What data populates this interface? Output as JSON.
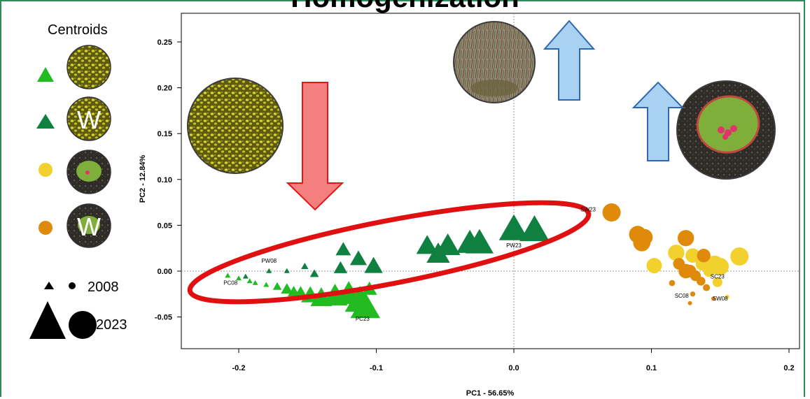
{
  "title": "Homogenization",
  "legend": {
    "title": "Centroids",
    "entries": [
      {
        "shape": "triangle",
        "color": "#22bb22",
        "badge": ""
      },
      {
        "shape": "triangle",
        "color": "#0f8040",
        "badge": "W"
      },
      {
        "shape": "circle",
        "color": "#f2d12e",
        "badge": ""
      },
      {
        "shape": "circle",
        "color": "#e08a0c",
        "badge": "W"
      }
    ],
    "size_small": "2008",
    "size_large": "2023"
  },
  "colors": {
    "pc": "#22bb22",
    "pw": "#0f8040",
    "sc": "#f2d12e",
    "sw": "#e08a0c",
    "ellipse": "#e01010",
    "down_arrow_fill": "#f47f7f",
    "down_arrow_stroke": "#e01818",
    "up_arrow_fill": "#a9d2f2",
    "up_arrow_stroke": "#2e68b0",
    "frame": "#2e8b57"
  },
  "chart_data": {
    "type": "scatter",
    "xlabel": "PC1 - 56.65%",
    "ylabel": "PC2 - 12.84%",
    "xlim": [
      -0.24,
      0.21
    ],
    "ylim": [
      -0.085,
      0.275
    ],
    "xticks": [
      "-0.2",
      "-0.1",
      "0.0",
      "0.1",
      "0.2"
    ],
    "xtick_values": [
      -0.2,
      -0.1,
      0.0,
      0.1,
      0.2
    ],
    "yticks": [
      "-0.05",
      "0.00",
      "0.05",
      "0.10",
      "0.15",
      "0.20",
      "0.25"
    ],
    "ytick_values": [
      -0.05,
      0.0,
      0.05,
      0.1,
      0.15,
      0.2,
      0.25
    ],
    "series": [
      {
        "group": "pc",
        "shape": "triangle",
        "points": [
          [
            -0.208,
            -0.005,
            2008
          ],
          [
            -0.2,
            -0.008,
            2008
          ],
          [
            -0.192,
            -0.011,
            2008
          ],
          [
            -0.188,
            -0.013,
            2008
          ],
          [
            -0.18,
            -0.015,
            2008
          ],
          [
            -0.172,
            -0.017,
            2010
          ],
          [
            -0.165,
            -0.02,
            2012
          ],
          [
            -0.16,
            -0.023,
            2012
          ],
          [
            -0.155,
            -0.025,
            2014
          ],
          [
            -0.148,
            -0.027,
            2016
          ],
          [
            -0.14,
            -0.03,
            2018
          ],
          [
            -0.13,
            -0.028,
            2020
          ],
          [
            -0.12,
            -0.026,
            2021
          ],
          [
            -0.112,
            -0.033,
            2023
          ],
          [
            -0.108,
            -0.04,
            2023
          ],
          [
            -0.105,
            -0.02,
            2014
          ]
        ]
      },
      {
        "group": "pw",
        "shape": "triangle",
        "points": [
          [
            -0.195,
            -0.006,
            2008
          ],
          [
            -0.178,
            0.0,
            2008
          ],
          [
            -0.165,
            0.0,
            2008
          ],
          [
            -0.152,
            0.005,
            2009
          ],
          [
            -0.145,
            -0.003,
            2010
          ],
          [
            -0.126,
            0.003,
            2013
          ],
          [
            -0.124,
            0.023,
            2014
          ],
          [
            -0.113,
            0.013,
            2015
          ],
          [
            -0.102,
            0.005,
            2016
          ],
          [
            -0.063,
            0.027,
            2018
          ],
          [
            -0.055,
            0.018,
            2019
          ],
          [
            -0.048,
            0.027,
            2020
          ],
          [
            -0.032,
            0.03,
            2021
          ],
          [
            -0.025,
            0.03,
            2022
          ],
          [
            0.0,
            0.045,
            2023
          ],
          [
            0.015,
            0.044,
            2023
          ]
        ]
      },
      {
        "group": "sc",
        "shape": "circle",
        "points": [
          [
            0.102,
            0.006,
            2020
          ],
          [
            0.118,
            0.02,
            2021
          ],
          [
            0.13,
            0.017,
            2019
          ],
          [
            0.137,
            0.008,
            2018
          ],
          [
            0.142,
            0.0,
            2016
          ],
          [
            0.148,
            -0.012,
            2014
          ],
          [
            0.155,
            -0.028,
            2008
          ],
          [
            0.15,
            0.005,
            2022
          ],
          [
            0.164,
            0.016,
            2023
          ],
          [
            0.146,
            0.007,
            2023
          ]
        ]
      },
      {
        "group": "sw",
        "shape": "circle",
        "points": [
          [
            0.071,
            0.064,
            2023
          ],
          [
            0.09,
            0.04,
            2022
          ],
          [
            0.095,
            0.037,
            2021
          ],
          [
            0.093,
            0.031,
            2022
          ],
          [
            0.125,
            0.036,
            2021
          ],
          [
            0.138,
            0.017,
            2018
          ],
          [
            0.12,
            0.008,
            2016
          ],
          [
            0.128,
            0.0,
            2017
          ],
          [
            0.132,
            -0.005,
            2015
          ],
          [
            0.136,
            -0.011,
            2013
          ],
          [
            0.14,
            -0.018,
            2011
          ],
          [
            0.115,
            -0.013,
            2010
          ],
          [
            0.13,
            -0.025,
            2009
          ],
          [
            0.128,
            -0.035,
            2008
          ],
          [
            0.145,
            -0.03,
            2008
          ],
          [
            0.125,
            0.0,
            2019
          ]
        ]
      }
    ],
    "point_labels": [
      {
        "text": "PC08",
        "x": -0.206,
        "y": -0.015
      },
      {
        "text": "PW08",
        "x": -0.178,
        "y": 0.009
      },
      {
        "text": "PC23",
        "x": -0.11,
        "y": -0.054
      },
      {
        "text": "PW23",
        "x": 0.0,
        "y": 0.026
      },
      {
        "text": "SW23",
        "x": 0.054,
        "y": 0.065
      },
      {
        "text": "SC23",
        "x": 0.148,
        "y": -0.008
      },
      {
        "text": "SC08",
        "x": 0.122,
        "y": -0.029
      },
      {
        "text": "SW08",
        "x": 0.15,
        "y": -0.032
      }
    ],
    "legend_placement": "left",
    "grid": "zero-lines"
  }
}
